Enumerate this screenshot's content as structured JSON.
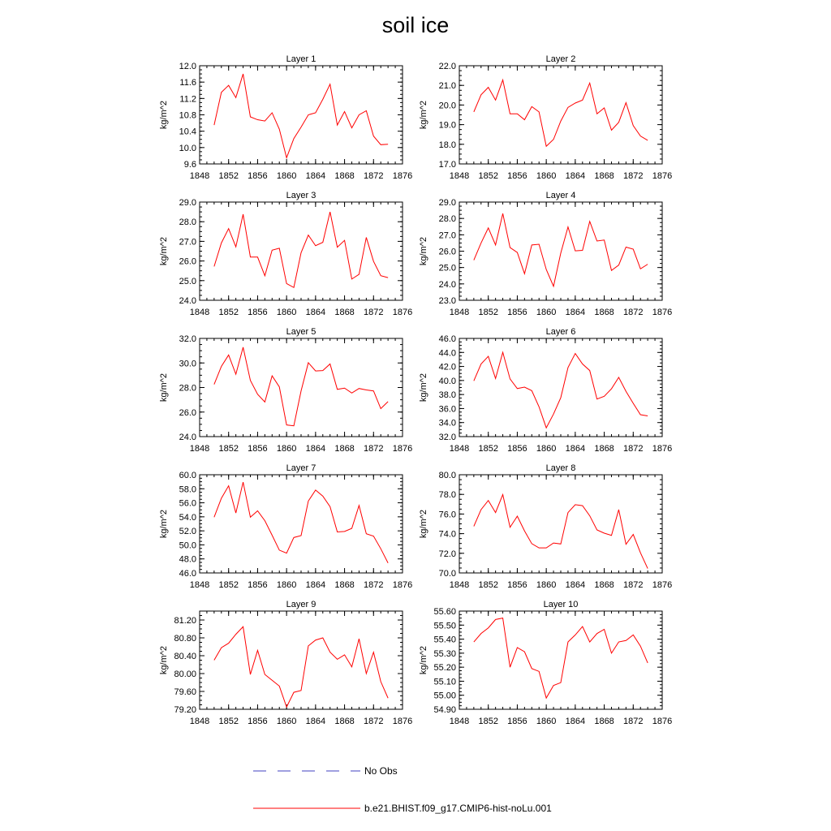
{
  "title": "soil ice",
  "chart_data": {
    "type": "line",
    "title": "soil ice",
    "x": [
      1850,
      1851,
      1852,
      1853,
      1854,
      1855,
      1856,
      1857,
      1858,
      1859,
      1860,
      1861,
      1862,
      1863,
      1864,
      1865,
      1866,
      1867,
      1868,
      1869,
      1870,
      1871,
      1872,
      1873,
      1874
    ],
    "xlim": [
      1848,
      1876
    ],
    "xticks": [
      "1848",
      "1852",
      "1856",
      "1860",
      "1864",
      "1868",
      "1872",
      "1876"
    ],
    "line_color": "#ff0000",
    "panels": [
      {
        "title": "Layer 1",
        "ylabel": "kg/m^2",
        "ylim": [
          9.6,
          12.0
        ],
        "yticks": [
          "9.6",
          "10.0",
          "10.4",
          "10.8",
          "11.2",
          "11.6",
          "12.0"
        ],
        "series": [
          {
            "name": "b.e21.BHIST.f09_g17.CMIP6-hist-noLu.001",
            "values": [
              10.55,
              11.35,
              11.52,
              11.22,
              11.8,
              10.75,
              10.68,
              10.65,
              10.85,
              10.45,
              9.75,
              10.22,
              10.5,
              10.8,
              10.85,
              11.18,
              11.55,
              10.55,
              10.88,
              10.48,
              10.8,
              10.9,
              10.28,
              10.07,
              10.08
            ]
          }
        ]
      },
      {
        "title": "Layer 2",
        "ylabel": "kg/m^2",
        "ylim": [
          17.0,
          22.0
        ],
        "yticks": [
          "17.0",
          "18.0",
          "19.0",
          "20.0",
          "21.0",
          "22.0"
        ],
        "series": [
          {
            "name": "b.e21.BHIST.f09_g17.CMIP6-hist-noLu.001",
            "values": [
              19.65,
              20.52,
              20.9,
              20.25,
              21.28,
              19.55,
              19.55,
              19.25,
              19.92,
              19.65,
              17.9,
              18.25,
              19.18,
              19.88,
              20.1,
              20.25,
              21.12,
              19.55,
              19.85,
              18.72,
              19.12,
              20.12,
              18.95,
              18.42,
              18.2
            ]
          }
        ]
      },
      {
        "title": "Layer 3",
        "ylabel": "kg/m^2",
        "ylim": [
          24.0,
          29.0
        ],
        "yticks": [
          "24.0",
          "25.0",
          "26.0",
          "27.0",
          "28.0",
          "29.0"
        ],
        "series": [
          {
            "name": "b.e21.BHIST.f09_g17.CMIP6-hist-noLu.001",
            "values": [
              25.72,
              26.92,
              27.65,
              26.72,
              28.38,
              26.2,
              26.2,
              25.25,
              26.55,
              26.65,
              24.85,
              24.65,
              26.42,
              27.32,
              26.78,
              26.95,
              28.5,
              26.7,
              27.05,
              25.08,
              25.32,
              27.2,
              25.98,
              25.25,
              25.15
            ]
          }
        ]
      },
      {
        "title": "Layer 4",
        "ylabel": "kg/m^2",
        "ylim": [
          23.0,
          29.0
        ],
        "yticks": [
          "23.0",
          "24.0",
          "25.0",
          "26.0",
          "27.0",
          "28.0",
          "29.0"
        ],
        "series": [
          {
            "name": "b.e21.BHIST.f09_g17.CMIP6-hist-noLu.001",
            "values": [
              25.45,
              26.5,
              27.42,
              26.38,
              28.3,
              26.22,
              25.92,
              24.62,
              26.38,
              26.42,
              24.88,
              23.85,
              25.88,
              27.48,
              26.02,
              26.05,
              27.82,
              26.62,
              26.68,
              24.82,
              25.15,
              26.25,
              26.12,
              24.92,
              25.2
            ]
          }
        ]
      },
      {
        "title": "Layer 5",
        "ylabel": "kg/m^2",
        "ylim": [
          24.0,
          32.0
        ],
        "yticks": [
          "24.0",
          "26.0",
          "28.0",
          "30.0",
          "32.0"
        ],
        "series": [
          {
            "name": "b.e21.BHIST.f09_g17.CMIP6-hist-noLu.001",
            "values": [
              28.25,
              29.72,
              30.65,
              29.08,
              31.28,
              28.58,
              27.45,
              26.82,
              28.95,
              28.05,
              24.95,
              24.88,
              27.72,
              30.02,
              29.35,
              29.38,
              29.92,
              27.85,
              27.95,
              27.55,
              27.92,
              27.8,
              27.72,
              26.28,
              26.85
            ]
          }
        ]
      },
      {
        "title": "Layer 6",
        "ylabel": "kg/m^2",
        "ylim": [
          32.0,
          46.0
        ],
        "yticks": [
          "32.0",
          "34.0",
          "36.0",
          "38.0",
          "40.0",
          "42.0",
          "44.0",
          "46.0"
        ],
        "series": [
          {
            "name": "b.e21.BHIST.f09_g17.CMIP6-hist-noLu.001",
            "values": [
              39.95,
              42.35,
              43.45,
              40.28,
              44.02,
              40.22,
              38.85,
              39.05,
              38.55,
              36.25,
              33.25,
              35.22,
              37.55,
              41.85,
              43.85,
              42.35,
              41.42,
              37.35,
              37.75,
              38.82,
              40.45,
              38.45,
              36.75,
              35.12,
              34.95
            ]
          }
        ]
      },
      {
        "title": "Layer 7",
        "ylabel": "kg/m^2",
        "ylim": [
          46.0,
          60.0
        ],
        "yticks": [
          "46.0",
          "48.0",
          "50.0",
          "52.0",
          "54.0",
          "56.0",
          "58.0",
          "60.0"
        ],
        "series": [
          {
            "name": "b.e21.BHIST.f09_g17.CMIP6-hist-noLu.001",
            "values": [
              53.95,
              56.65,
              58.42,
              54.55,
              58.95,
              53.95,
              54.85,
              53.45,
              51.38,
              49.25,
              48.82,
              51.05,
              51.32,
              56.25,
              57.82,
              56.95,
              55.45,
              51.85,
              51.92,
              52.35,
              55.62,
              51.58,
              51.25,
              49.45,
              47.42
            ]
          }
        ]
      },
      {
        "title": "Layer 8",
        "ylabel": "kg/m^2",
        "ylim": [
          70.0,
          80.0
        ],
        "yticks": [
          "70.0",
          "72.0",
          "74.0",
          "76.0",
          "78.0",
          "80.0"
        ],
        "series": [
          {
            "name": "b.e21.BHIST.f09_g17.CMIP6-hist-noLu.001",
            "values": [
              74.75,
              76.45,
              77.38,
              76.15,
              77.98,
              74.65,
              75.78,
              74.28,
              72.98,
              72.55,
              72.55,
              73.05,
              72.95,
              76.15,
              76.95,
              76.85,
              75.82,
              74.38,
              74.05,
              73.82,
              76.45,
              72.92,
              73.92,
              72.05,
              70.45
            ]
          }
        ]
      },
      {
        "title": "Layer 9",
        "ylabel": "kg/m^2",
        "ylim": [
          79.2,
          81.4
        ],
        "yticks": [
          "79.20",
          "79.60",
          "80.00",
          "80.40",
          "80.80",
          "81.20"
        ],
        "series": [
          {
            "name": "b.e21.BHIST.f09_g17.CMIP6-hist-noLu.001",
            "values": [
              80.3,
              80.58,
              80.68,
              80.88,
              81.05,
              79.98,
              80.52,
              79.98,
              79.85,
              79.72,
              79.25,
              79.58,
              79.62,
              80.62,
              80.75,
              80.8,
              80.48,
              80.32,
              80.42,
              80.15,
              80.78,
              80.0,
              80.48,
              79.82,
              79.45
            ]
          }
        ]
      },
      {
        "title": "Layer 10",
        "ylabel": "kg/m^2",
        "ylim": [
          54.9,
          55.6
        ],
        "yticks": [
          "54.90",
          "55.00",
          "55.10",
          "55.20",
          "55.30",
          "55.40",
          "55.50",
          "55.60"
        ],
        "series": [
          {
            "name": "b.e21.BHIST.f09_g17.CMIP6-hist-noLu.001",
            "values": [
              55.38,
              55.44,
              55.48,
              55.54,
              55.55,
              55.2,
              55.34,
              55.31,
              55.19,
              55.17,
              54.98,
              55.07,
              55.09,
              55.38,
              55.43,
              55.49,
              55.38,
              55.44,
              55.47,
              55.3,
              55.38,
              55.39,
              55.43,
              55.35,
              55.23
            ]
          }
        ]
      }
    ],
    "legend": {
      "placement": "bottom-center",
      "entries": [
        {
          "label": "No Obs",
          "color": "#4040c0",
          "dash": "dashed"
        },
        {
          "label": "b.e21.BHIST.f09_g17.CMIP6-hist-noLu.001",
          "color": "#ff0000",
          "dash": "solid"
        }
      ]
    }
  }
}
